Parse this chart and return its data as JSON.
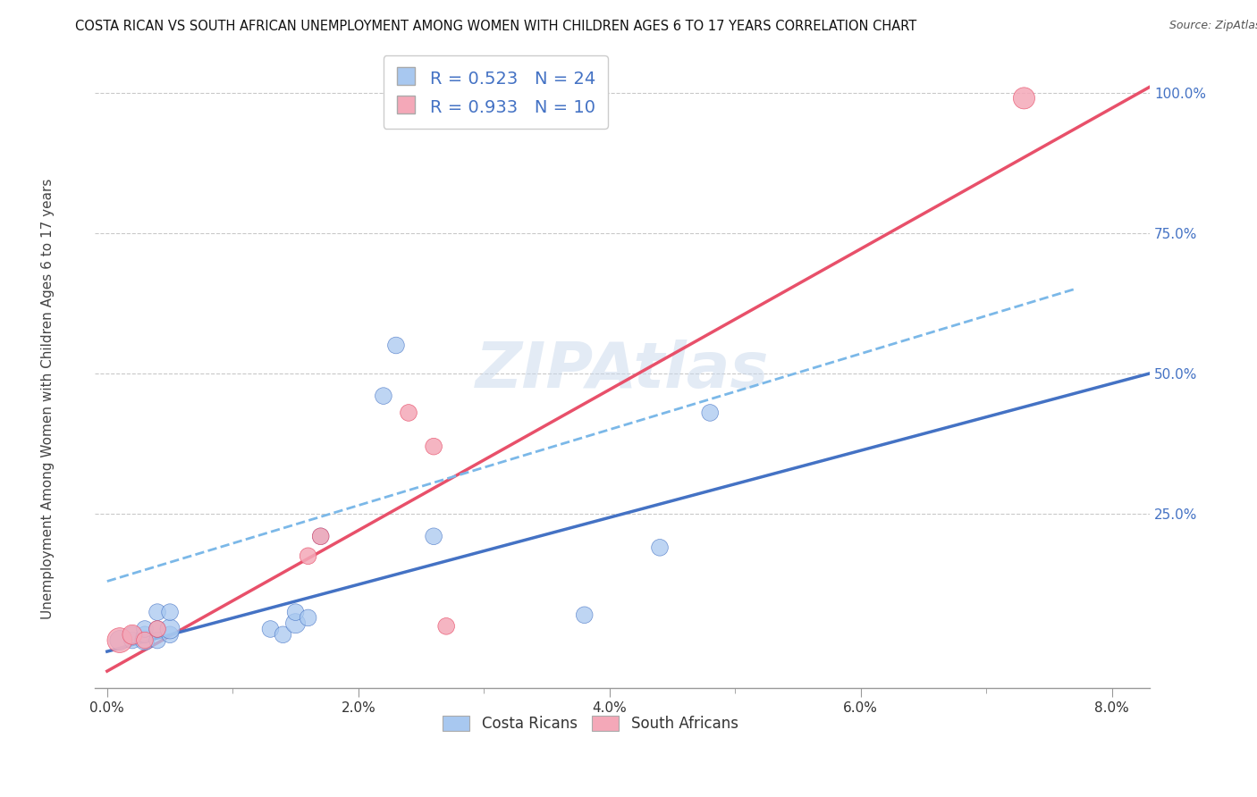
{
  "title": "COSTA RICAN VS SOUTH AFRICAN UNEMPLOYMENT AMONG WOMEN WITH CHILDREN AGES 6 TO 17 YEARS CORRELATION CHART",
  "source": "Source: ZipAtlas.com",
  "ylabel": "Unemployment Among Women with Children Ages 6 to 17 years",
  "xlabel_ticks": [
    "0.0%",
    "2.0%",
    "4.0%",
    "6.0%",
    "8.0%"
  ],
  "xlabel_vals": [
    0.0,
    0.02,
    0.04,
    0.06,
    0.08
  ],
  "xlabel_minor": [
    0.01,
    0.03,
    0.05,
    0.07
  ],
  "ylabel_ticks": [
    "100.0%",
    "75.0%",
    "50.0%",
    "25.0%"
  ],
  "ylabel_vals": [
    1.0,
    0.75,
    0.5,
    0.25
  ],
  "xlim": [
    -0.001,
    0.083
  ],
  "ylim": [
    -0.06,
    1.07
  ],
  "legend_r1": "R = 0.523",
  "legend_n1": "N = 24",
  "legend_r2": "R = 0.933",
  "legend_n2": "N = 10",
  "legend_label1": "Costa Ricans",
  "legend_label2": "South Africans",
  "color_cr": "#A8C8F0",
  "color_sa": "#F4A8B8",
  "color_cr_line": "#4472C4",
  "color_sa_line": "#E8506A",
  "color_dash": "#7BB8E8",
  "watermark": "ZIPAtlas",
  "background_color": "#FFFFFF",
  "cr_x": [
    0.001,
    0.002,
    0.002,
    0.003,
    0.003,
    0.003,
    0.004,
    0.004,
    0.004,
    0.005,
    0.005,
    0.005,
    0.013,
    0.014,
    0.015,
    0.015,
    0.016,
    0.017,
    0.022,
    0.023,
    0.026,
    0.038,
    0.044,
    0.048
  ],
  "cr_y": [
    0.025,
    0.025,
    0.035,
    0.025,
    0.035,
    0.045,
    0.025,
    0.045,
    0.075,
    0.035,
    0.045,
    0.075,
    0.045,
    0.035,
    0.055,
    0.075,
    0.065,
    0.21,
    0.46,
    0.55,
    0.21,
    0.07,
    0.19,
    0.43
  ],
  "cr_sizes": [
    250,
    180,
    180,
    250,
    180,
    180,
    180,
    180,
    180,
    180,
    250,
    180,
    180,
    180,
    250,
    180,
    180,
    180,
    180,
    180,
    180,
    180,
    180,
    180
  ],
  "sa_x": [
    0.001,
    0.002,
    0.003,
    0.004,
    0.016,
    0.017,
    0.024,
    0.026,
    0.027,
    0.073
  ],
  "sa_y": [
    0.025,
    0.035,
    0.025,
    0.045,
    0.175,
    0.21,
    0.43,
    0.37,
    0.05,
    0.99
  ],
  "sa_sizes": [
    400,
    250,
    180,
    180,
    180,
    180,
    180,
    180,
    180,
    300
  ],
  "cr_line_x0": 0.0,
  "cr_line_x1": 0.083,
  "cr_line_y0": 0.005,
  "cr_line_y1": 0.5,
  "sa_line_x0": 0.0,
  "sa_line_x1": 0.083,
  "sa_line_y0": -0.03,
  "sa_line_y1": 1.01,
  "dash_line_x0": 0.0,
  "dash_line_x1": 0.077,
  "dash_line_y0": 0.13,
  "dash_line_y1": 0.65
}
